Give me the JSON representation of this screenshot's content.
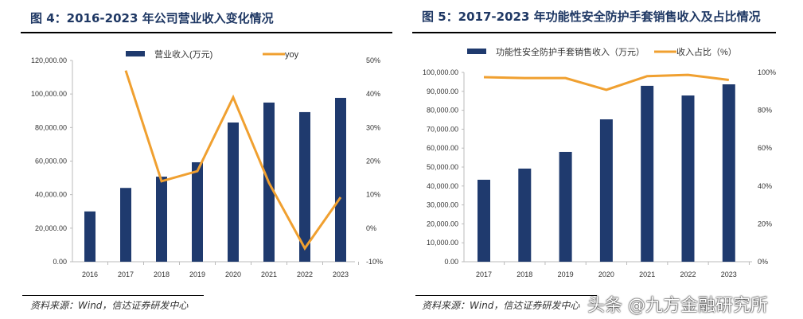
{
  "chart_data": [
    {
      "type": "bar+line",
      "title": "图 4：2016-2023 年公司营业收入变化情况",
      "categories": [
        "2016",
        "2017",
        "2018",
        "2019",
        "2020",
        "2021",
        "2022",
        "2023"
      ],
      "series": [
        {
          "name": "营业收入(万元)",
          "type": "bar",
          "axis": "left",
          "color": "#1f3a6e",
          "values": [
            30000,
            44000,
            50700,
            59300,
            83000,
            94900,
            89200,
            97700
          ]
        },
        {
          "name": "yoy",
          "type": "line",
          "axis": "right",
          "color": "#f0a030",
          "values": [
            null,
            47,
            14,
            17,
            39,
            13.5,
            -6,
            9.2
          ]
        }
      ],
      "left_ticks": [
        "0.00",
        "20,000.00",
        "40,000.00",
        "60,000.00",
        "80,000.00",
        "100,000.00",
        "120,000.00"
      ],
      "right_ticks": [
        "-10%",
        "0%",
        "10%",
        "20%",
        "30%",
        "40%",
        "50%"
      ],
      "ylim": [
        0,
        120000
      ],
      "y2lim": [
        -10,
        50
      ],
      "legend": "top",
      "source": "资料来源：Wind，信达证券研发中心"
    },
    {
      "type": "bar+line",
      "title": "图 5：2017-2023 年功能性安全防护手套销售收入及占比情况",
      "categories": [
        "2017",
        "2018",
        "2019",
        "2020",
        "2021",
        "2022",
        "2023"
      ],
      "series": [
        {
          "name": "功能性安全防护手套销售收入（万元）",
          "type": "bar",
          "axis": "left",
          "color": "#1f3a6e",
          "values": [
            43300,
            49200,
            58000,
            75200,
            92900,
            87800,
            93700
          ]
        },
        {
          "name": "收入占比（%）",
          "type": "line",
          "axis": "right",
          "color": "#f0a030",
          "values": [
            97.5,
            97,
            97,
            90.8,
            98,
            98.7,
            96
          ]
        }
      ],
      "left_ticks": [
        "0.00",
        "10,000.00",
        "20,000.00",
        "30,000.00",
        "40,000.00",
        "50,000.00",
        "60,000.00",
        "70,000.00",
        "80,000.00",
        "90,000.00",
        "100,000.00"
      ],
      "right_ticks": [
        "0%",
        "20%",
        "40%",
        "60%",
        "80%",
        "100%"
      ],
      "ylim": [
        0,
        100000
      ],
      "y2lim": [
        0,
        100
      ],
      "legend": "top",
      "source": "资料来源：Wind，信达证券研发中心"
    }
  ],
  "watermark": "头条 @九方金融研究所"
}
